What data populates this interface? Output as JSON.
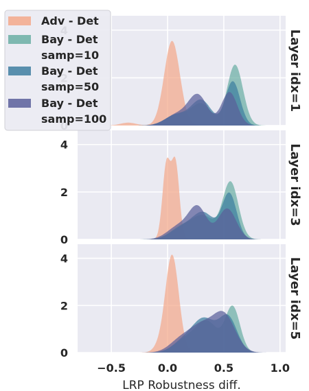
{
  "chart_data": {
    "type": "area",
    "xlabel": "LRP Robustness diff.",
    "ylabel": "",
    "xlim": [
      -0.8,
      1.05
    ],
    "ylim": [
      0,
      4.6
    ],
    "x_ticks": [
      "−0.5",
      "0.0",
      "0.5",
      "1.0"
    ],
    "x_tick_values": [
      -0.5,
      0.0,
      0.5,
      1.0
    ],
    "y_ticks": [
      "0",
      "2",
      "4"
    ],
    "y_tick_values": [
      0,
      2,
      4
    ],
    "grid": true,
    "legend_position": "top-left",
    "legend": [
      {
        "label_line1": "Adv - Det",
        "label_line2": "",
        "color": "#F4A98A"
      },
      {
        "label_line1": "Bay - Det",
        "label_line2": "samp=10",
        "color": "#6BAFA3"
      },
      {
        "label_line1": "Bay - Det",
        "label_line2": "samp=50",
        "color": "#3F7FA0"
      },
      {
        "label_line1": "Bay - Det",
        "label_line2": "samp=100",
        "color": "#5A5F9A"
      }
    ],
    "panels": [
      {
        "title": "Layer idx=1",
        "series": [
          {
            "name": "Adv - Det",
            "components": [
              [
                3.55,
                0.04,
                0.07
              ],
              [
                0.12,
                -0.35,
                0.07
              ]
            ]
          },
          {
            "name": "Bay - Det samp=10",
            "components": [
              [
                2.55,
                0.6,
                0.07
              ],
              [
                0.9,
                0.3,
                0.09
              ],
              [
                0.45,
                0.08,
                0.1
              ]
            ]
          },
          {
            "name": "Bay - Det samp=50",
            "components": [
              [
                1.85,
                0.58,
                0.065
              ],
              [
                1.05,
                0.3,
                0.09
              ],
              [
                0.45,
                0.08,
                0.1
              ]
            ]
          },
          {
            "name": "Bay - Det samp=100",
            "components": [
              [
                1.4,
                0.55,
                0.07
              ],
              [
                1.25,
                0.27,
                0.085
              ],
              [
                0.45,
                0.08,
                0.1
              ]
            ]
          }
        ]
      },
      {
        "title": "Layer idx=3",
        "series": [
          {
            "name": "Adv - Det",
            "components": [
              [
                3.15,
                -0.01,
                0.035
              ],
              [
                3.2,
                0.07,
                0.035
              ]
            ]
          },
          {
            "name": "Bay - Det samp=10",
            "components": [
              [
                2.4,
                0.56,
                0.07
              ],
              [
                0.95,
                0.32,
                0.1
              ],
              [
                0.5,
                0.12,
                0.1
              ]
            ]
          },
          {
            "name": "Bay - Det samp=50",
            "components": [
              [
                1.9,
                0.55,
                0.065
              ],
              [
                1.1,
                0.32,
                0.1
              ],
              [
                0.45,
                0.12,
                0.1
              ]
            ]
          },
          {
            "name": "Bay - Det samp=100",
            "components": [
              [
                1.3,
                0.53,
                0.08
              ],
              [
                1.3,
                0.27,
                0.08
              ],
              [
                0.55,
                0.1,
                0.1
              ]
            ]
          }
        ]
      },
      {
        "title": "Layer idx=5",
        "series": [
          {
            "name": "Adv - Det",
            "components": [
              [
                4.15,
                0.04,
                0.06
              ],
              [
                0.2,
                -0.08,
                0.05
              ]
            ]
          },
          {
            "name": "Bay - Det samp=10",
            "components": [
              [
                1.9,
                0.58,
                0.065
              ],
              [
                1.3,
                0.35,
                0.1
              ],
              [
                0.5,
                0.15,
                0.1
              ]
            ]
          },
          {
            "name": "Bay - Det samp=50",
            "components": [
              [
                1.45,
                0.54,
                0.08
              ],
              [
                1.35,
                0.33,
                0.1
              ],
              [
                0.5,
                0.15,
                0.1
              ]
            ]
          },
          {
            "name": "Bay - Det samp=100",
            "components": [
              [
                1.6,
                0.5,
                0.1
              ],
              [
                1.0,
                0.3,
                0.1
              ],
              [
                0.55,
                0.12,
                0.1
              ]
            ]
          }
        ]
      }
    ]
  }
}
